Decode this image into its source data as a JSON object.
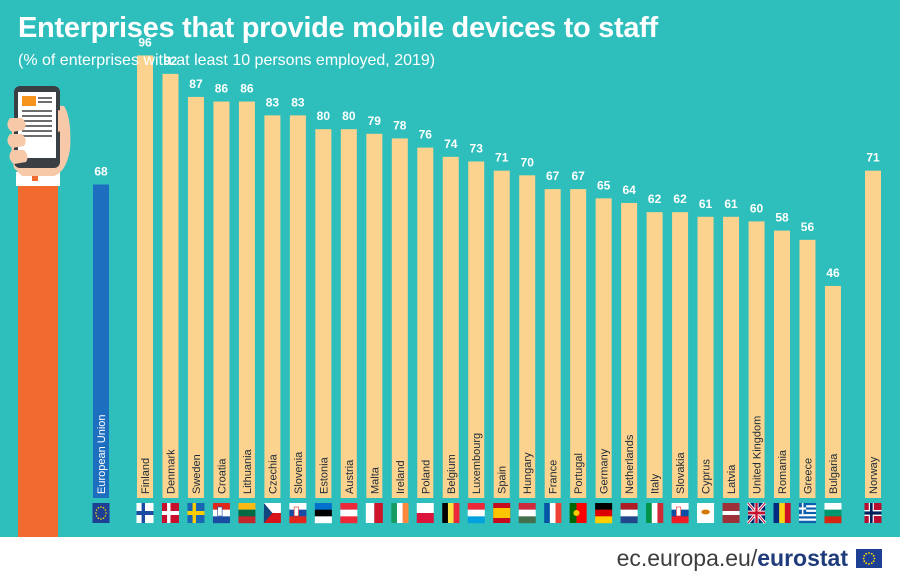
{
  "header": {
    "title": "Enterprises that provide mobile devices to staff",
    "subtitle": "(% of enterprises with at least 10 persons employed, 2019)"
  },
  "footer": {
    "url_prefix": "ec.europa.eu/",
    "brand": "eurostat",
    "logo_icon": "eu-flag-icon"
  },
  "colors": {
    "background": "#2ebfbd",
    "bar": "#fbd38e",
    "bar_eu": "#1e6ec0",
    "label": "#ffffff",
    "category_text": "#1e2a38"
  },
  "chart_data": {
    "type": "bar",
    "title": "Enterprises that provide mobile devices to staff",
    "subtitle": "(% of enterprises with at least 10 persons employed, 2019)",
    "xlabel": "",
    "ylabel": "",
    "ylim": [
      0,
      100
    ],
    "grid": false,
    "categories": [
      "European Union",
      "Finland",
      "Denmark",
      "Sweden",
      "Croatia",
      "Lithuania",
      "Czechia",
      "Slovenia",
      "Estonia",
      "Austria",
      "Malta",
      "Ireland",
      "Poland",
      "Belgium",
      "Luxembourg",
      "Spain",
      "Hungary",
      "France",
      "Portugal",
      "Germany",
      "Netherlands",
      "Italy",
      "Slovakia",
      "Cyprus",
      "Latvia",
      "United Kingdom",
      "Romania",
      "Greece",
      "Bulgaria",
      "Norway"
    ],
    "values": [
      68,
      96,
      92,
      87,
      86,
      86,
      83,
      83,
      80,
      80,
      79,
      78,
      76,
      74,
      73,
      71,
      70,
      67,
      67,
      65,
      64,
      62,
      62,
      61,
      61,
      60,
      58,
      56,
      46,
      71
    ],
    "flag_icons": [
      "eu-flag-icon",
      "finland-flag-icon",
      "denmark-flag-icon",
      "sweden-flag-icon",
      "croatia-flag-icon",
      "lithuania-flag-icon",
      "czechia-flag-icon",
      "slovenia-flag-icon",
      "estonia-flag-icon",
      "austria-flag-icon",
      "malta-flag-icon",
      "ireland-flag-icon",
      "poland-flag-icon",
      "belgium-flag-icon",
      "luxembourg-flag-icon",
      "spain-flag-icon",
      "hungary-flag-icon",
      "france-flag-icon",
      "portugal-flag-icon",
      "germany-flag-icon",
      "netherlands-flag-icon",
      "italy-flag-icon",
      "slovakia-flag-icon",
      "cyprus-flag-icon",
      "latvia-flag-icon",
      "united-kingdom-flag-icon",
      "romania-flag-icon",
      "greece-flag-icon",
      "bulgaria-flag-icon",
      "norway-flag-icon"
    ]
  }
}
